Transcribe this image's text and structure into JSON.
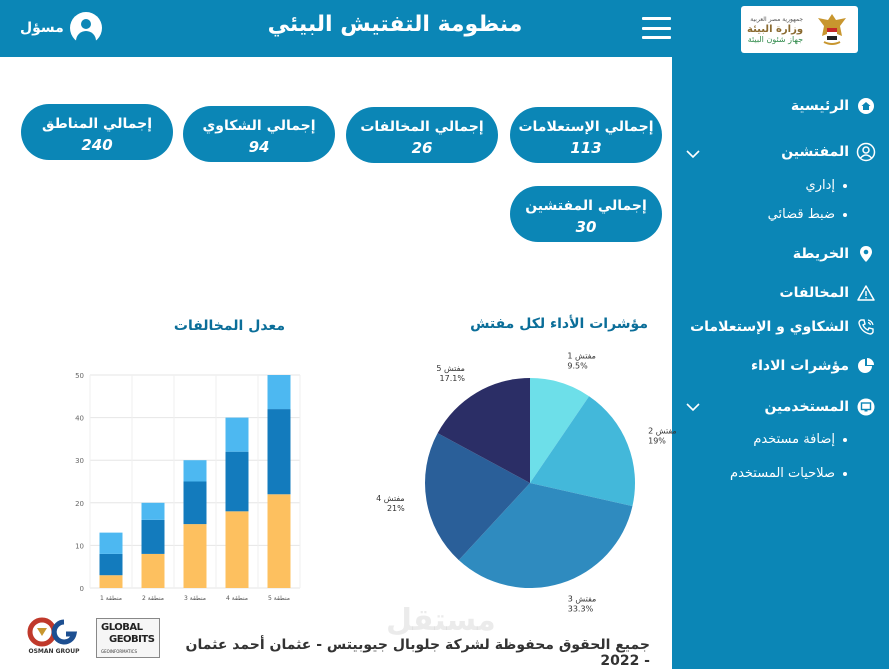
{
  "header": {
    "title": "منظومة التفتيش البيئي",
    "user_label": "مسؤل",
    "logo": {
      "line1": "جمهورية مصر العربية",
      "line2": "وزارة البيئة",
      "line3": "جهاز شئون البيئة"
    }
  },
  "sidebar": {
    "items": [
      {
        "label": "الرئيسية",
        "icon": "home-icon"
      },
      {
        "label": "المفتشين",
        "icon": "user-circle-icon",
        "expanded": true,
        "children": [
          "إداري",
          "ضبط قضائي"
        ]
      },
      {
        "label": "الخريطة",
        "icon": "map-pin-icon"
      },
      {
        "label": "المخالفات",
        "icon": "warning-icon"
      },
      {
        "label": "الشكاوي و الإستعلامات",
        "icon": "phone-icon"
      },
      {
        "label": "مؤشرات الاداء",
        "icon": "pie-chart-icon"
      },
      {
        "label": "المستخدمين",
        "icon": "monitor-icon",
        "expanded": true,
        "children": [
          "إضافة مستخدم",
          "صلاحيات المستخدم"
        ]
      }
    ]
  },
  "stats": [
    {
      "label": "إجمالي الإستعلامات",
      "value": "113"
    },
    {
      "label": "إجمالي المخالفات",
      "value": "26"
    },
    {
      "label": "إجمالي الشكاوي",
      "value": "94"
    },
    {
      "label": "إجمالي المناطق",
      "value": "240"
    },
    {
      "label": "إجمالي المفتشين",
      "value": "30"
    }
  ],
  "colors": {
    "primary": "#0b86b6",
    "title": "#0b6e99"
  },
  "footer": {
    "copyright": "جميع الحقوق محفوظة لشركة جلوبال جيوبيتس - عثمان أحمد عثمان - 2022",
    "watermark": "مستقل",
    "logo_osman": "OSMAN GROUP",
    "logo_geo": {
      "line1": "GLOBAL",
      "line2": "GEOBITS",
      "line3": "GEOINFORMATICS"
    }
  },
  "chart_data": [
    {
      "type": "pie",
      "title": "مؤشرات الأداء لكل مفتش",
      "slices": [
        {
          "label": "مفتش 1",
          "percent_label": "9.5%",
          "value": 9.5,
          "color": "#6ddfe9"
        },
        {
          "label": "مفتش 2",
          "percent_label": "19%",
          "value": 19,
          "color": "#43b8da"
        },
        {
          "label": "مفتش 3",
          "percent_label": "33.3%",
          "value": 33.3,
          "color": "#2f8bbf"
        },
        {
          "label": "مفتش 4",
          "percent_label": "21%",
          "value": 21,
          "color": "#2a5f99"
        },
        {
          "label": "مفتش 5",
          "percent_label": "17.1%",
          "value": 17.1,
          "color": "#2b2e66"
        }
      ]
    },
    {
      "type": "bar",
      "stacked": true,
      "title": "معدل المخالفات",
      "categories": [
        "منطقة 1",
        "منطقة 2",
        "منطقة 3",
        "منطقة 4",
        "منطقة 5"
      ],
      "series": [
        {
          "values": [
            3,
            8,
            15,
            18,
            22
          ],
          "color": "#fdc05f"
        },
        {
          "values": [
            5,
            8,
            10,
            14,
            20
          ],
          "color": "#137bbd"
        },
        {
          "values": [
            5,
            4,
            5,
            8,
            8
          ],
          "color": "#4db8f1"
        }
      ],
      "ylim": [
        0,
        50
      ],
      "yticks": [
        0,
        10,
        20,
        30,
        40,
        50
      ],
      "grid": true
    }
  ]
}
